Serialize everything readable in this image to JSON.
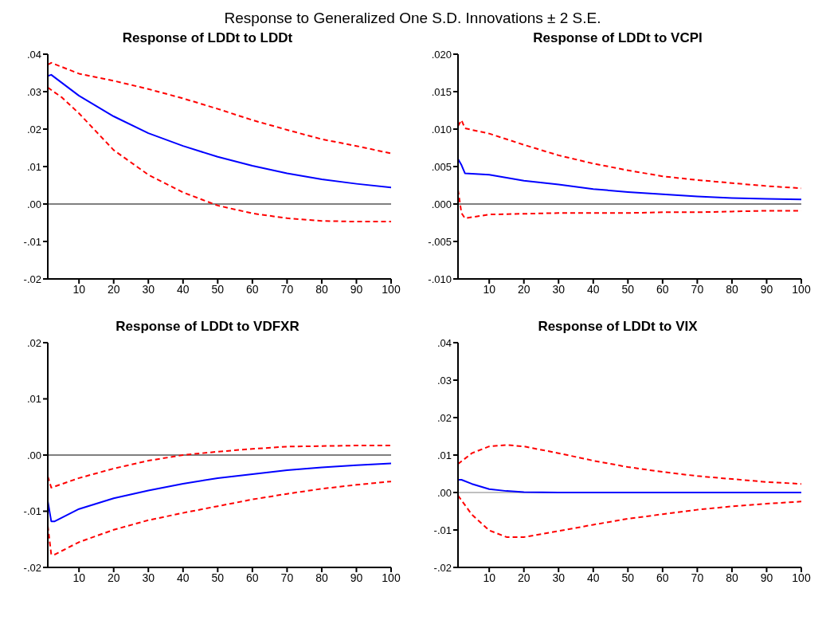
{
  "chart_data": [
    {
      "type": "line",
      "title": "Response of LDDt to LDDt",
      "annotations": [
        "Response to Generalized One S.D. Innovations ± 2 S.E."
      ],
      "xlim": [
        1,
        100
      ],
      "xticks": [
        10,
        20,
        30,
        40,
        50,
        60,
        70,
        80,
        90,
        100
      ],
      "ylim": [
        -0.02,
        0.04
      ],
      "yticks": [
        {
          "value": -0.02,
          "label": "-.02"
        },
        {
          "value": -0.01,
          "label": "-.01"
        },
        {
          "value": 0,
          "label": ".00"
        },
        {
          "value": 0.01,
          "label": ".01"
        },
        {
          "value": 0.02,
          "label": ".02"
        },
        {
          "value": 0.03,
          "label": ".03"
        },
        {
          "value": 0.04,
          "label": ".04"
        }
      ],
      "grid": false,
      "ref_lines": [
        {
          "axis": "y",
          "value": 0,
          "color": "#000000"
        }
      ],
      "series": [
        {
          "color": "#0000ff",
          "line_style": "solid",
          "x": [
            1,
            2,
            10,
            20,
            30,
            40,
            50,
            60,
            70,
            80,
            90,
            100
          ],
          "values": [
            0.0342,
            0.0345,
            0.0289,
            0.0234,
            0.0189,
            0.0155,
            0.0126,
            0.0102,
            0.0082,
            0.0066,
            0.0054,
            0.0044
          ]
        },
        {
          "color": "#ff0000",
          "line_style": "dashed",
          "x": [
            1,
            2,
            10,
            20,
            30,
            40,
            50,
            60,
            70,
            80,
            90,
            100
          ],
          "values": [
            0.0372,
            0.0377,
            0.0348,
            0.0329,
            0.0307,
            0.0282,
            0.0254,
            0.0224,
            0.0198,
            0.0173,
            0.0155,
            0.0135
          ]
        },
        {
          "color": "#ff0000",
          "line_style": "dashed",
          "x": [
            1,
            5,
            10,
            20,
            30,
            40,
            50,
            60,
            70,
            80,
            90,
            100
          ],
          "values": [
            0.0311,
            0.0285,
            0.0242,
            0.0144,
            0.0078,
            0.0031,
            -0.0004,
            -0.0025,
            -0.0038,
            -0.0045,
            -0.0047,
            -0.0047
          ]
        }
      ]
    },
    {
      "type": "line",
      "title": "Response of LDDt to VCPI",
      "xlim": [
        1,
        100
      ],
      "xticks": [
        10,
        20,
        30,
        40,
        50,
        60,
        70,
        80,
        90,
        100
      ],
      "ylim": [
        -0.01,
        0.02
      ],
      "yticks": [
        {
          "value": -0.01,
          "label": "-.010"
        },
        {
          "value": -0.005,
          "label": "-.005"
        },
        {
          "value": 0,
          "label": ".000"
        },
        {
          "value": 0.005,
          "label": ".005"
        },
        {
          "value": 0.01,
          "label": ".010"
        },
        {
          "value": 0.015,
          "label": ".015"
        },
        {
          "value": 0.02,
          "label": ".020"
        }
      ],
      "grid": false,
      "ref_lines": [
        {
          "axis": "y",
          "value": 0,
          "color": "#000000"
        }
      ],
      "series": [
        {
          "color": "#0000ff",
          "line_style": "solid",
          "x": [
            1,
            2,
            3,
            10,
            20,
            30,
            40,
            50,
            60,
            70,
            80,
            90,
            100
          ],
          "values": [
            0.006,
            0.0052,
            0.0041,
            0.0039,
            0.0031,
            0.0026,
            0.002,
            0.0016,
            0.0013,
            0.001,
            0.0008,
            0.0007,
            0.0006
          ]
        },
        {
          "color": "#ff0000",
          "line_style": "dashed",
          "x": [
            1,
            2,
            3,
            10,
            20,
            30,
            40,
            50,
            60,
            70,
            80,
            90,
            100
          ],
          "values": [
            0.0104,
            0.0112,
            0.0101,
            0.0094,
            0.0079,
            0.0065,
            0.0054,
            0.0045,
            0.0037,
            0.0032,
            0.0028,
            0.0024,
            0.0021
          ]
        },
        {
          "color": "#ff0000",
          "line_style": "dashed",
          "x": [
            1,
            2,
            3,
            10,
            20,
            30,
            40,
            50,
            60,
            70,
            80,
            90,
            100
          ],
          "values": [
            0.0019,
            -0.0012,
            -0.0019,
            -0.0014,
            -0.0013,
            -0.0012,
            -0.0012,
            -0.0012,
            -0.0011,
            -0.0011,
            -0.001,
            -0.0009,
            -0.0009
          ]
        }
      ]
    },
    {
      "type": "line",
      "title": "Response of LDDt to VDFXR",
      "xlim": [
        1,
        100
      ],
      "xticks": [
        10,
        20,
        30,
        40,
        50,
        60,
        70,
        80,
        90,
        100
      ],
      "ylim": [
        -0.02,
        0.02
      ],
      "yticks": [
        {
          "value": -0.02,
          "label": "-.02"
        },
        {
          "value": -0.01,
          "label": "-.01"
        },
        {
          "value": 0,
          "label": ".00"
        },
        {
          "value": 0.01,
          "label": ".01"
        },
        {
          "value": 0.02,
          "label": ".02"
        }
      ],
      "grid": false,
      "ref_lines": [
        {
          "axis": "y",
          "value": 0,
          "color": "#000000"
        }
      ],
      "series": [
        {
          "color": "#0000ff",
          "line_style": "solid",
          "x": [
            1,
            2,
            3,
            10,
            20,
            30,
            40,
            50,
            60,
            70,
            80,
            90,
            100
          ],
          "values": [
            -0.0082,
            -0.0118,
            -0.0118,
            -0.0096,
            -0.0077,
            -0.0063,
            -0.0051,
            -0.0041,
            -0.0034,
            -0.0027,
            -0.0022,
            -0.0018,
            -0.0015
          ]
        },
        {
          "color": "#ff0000",
          "line_style": "dashed",
          "x": [
            1,
            2,
            10,
            20,
            30,
            40,
            50,
            60,
            70,
            80,
            90,
            100
          ],
          "values": [
            -0.0038,
            -0.0058,
            -0.0041,
            -0.0024,
            -0.001,
            0,
            0.0006,
            0.0011,
            0.0015,
            0.0016,
            0.0017,
            0.0017
          ]
        },
        {
          "color": "#ff0000",
          "line_style": "dashed",
          "x": [
            1,
            2,
            3,
            10,
            20,
            30,
            40,
            50,
            60,
            70,
            80,
            90,
            100
          ],
          "values": [
            -0.0126,
            -0.0177,
            -0.0177,
            -0.0155,
            -0.0133,
            -0.0116,
            -0.0103,
            -0.0091,
            -0.0079,
            -0.0069,
            -0.006,
            -0.0053,
            -0.0047
          ]
        }
      ]
    },
    {
      "type": "line",
      "title": "Response of LDDt to VIX",
      "xlim": [
        1,
        100
      ],
      "xticks": [
        10,
        20,
        30,
        40,
        50,
        60,
        70,
        80,
        90,
        100
      ],
      "ylim": [
        -0.02,
        0.04
      ],
      "yticks": [
        {
          "value": -0.02,
          "label": "-.02"
        },
        {
          "value": -0.01,
          "label": "-.01"
        },
        {
          "value": 0,
          "label": ".00"
        },
        {
          "value": 0.01,
          "label": ".01"
        },
        {
          "value": 0.02,
          "label": ".02"
        },
        {
          "value": 0.03,
          "label": ".03"
        },
        {
          "value": 0.04,
          "label": ".04"
        }
      ],
      "grid": false,
      "ref_lines": [
        {
          "axis": "y",
          "value": 0,
          "color": "#808080"
        }
      ],
      "series": [
        {
          "color": "#0000ff",
          "line_style": "solid",
          "x": [
            1,
            2,
            5,
            10,
            15,
            20,
            30,
            40,
            50,
            60,
            70,
            80,
            90,
            100
          ],
          "values": [
            0.0034,
            0.0034,
            0.0023,
            0.0009,
            0.0004,
            0.0001,
            0,
            0,
            0,
            0,
            0,
            0,
            0,
            0
          ]
        },
        {
          "color": "#ff0000",
          "line_style": "dashed",
          "x": [
            1,
            5,
            10,
            15,
            20,
            30,
            40,
            50,
            60,
            70,
            80,
            90,
            100
          ],
          "values": [
            0.0076,
            0.0105,
            0.0123,
            0.0127,
            0.0123,
            0.0105,
            0.0085,
            0.0068,
            0.0055,
            0.0044,
            0.0036,
            0.0028,
            0.0023
          ]
        },
        {
          "color": "#ff0000",
          "line_style": "dashed",
          "x": [
            1,
            5,
            10,
            15,
            20,
            30,
            40,
            50,
            60,
            70,
            80,
            90,
            100
          ],
          "values": [
            -0.0008,
            -0.0059,
            -0.0101,
            -0.0119,
            -0.0119,
            -0.0103,
            -0.0086,
            -0.007,
            -0.0058,
            -0.0046,
            -0.0037,
            -0.003,
            -0.0024
          ]
        }
      ]
    }
  ]
}
